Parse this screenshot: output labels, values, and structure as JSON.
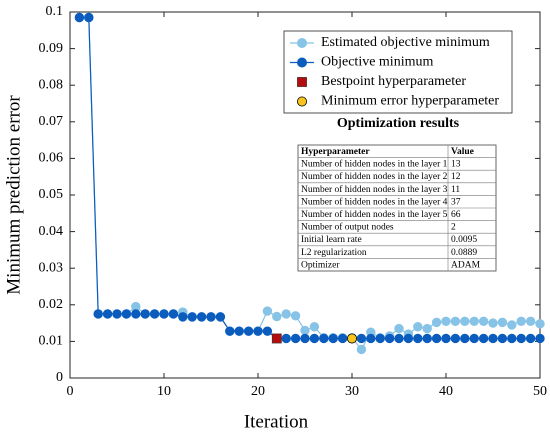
{
  "chart_data": {
    "type": "line",
    "xlabel": "Iteration",
    "ylabel": "Minimum prediction error",
    "xlim": [
      0,
      50
    ],
    "xticks": [
      0,
      10,
      20,
      30,
      40,
      50
    ],
    "ylim": [
      0,
      0.1
    ],
    "yticks": [
      0,
      0.01,
      0.02,
      0.03,
      0.04,
      0.05,
      0.06,
      0.07,
      0.08,
      0.09,
      0.1
    ],
    "grid": false,
    "legend": "upper right",
    "x": [
      1,
      2,
      3,
      4,
      5,
      6,
      7,
      8,
      9,
      10,
      11,
      12,
      13,
      14,
      15,
      16,
      17,
      18,
      19,
      20,
      21,
      22,
      23,
      24,
      25,
      26,
      27,
      28,
      29,
      30,
      31,
      32,
      33,
      34,
      35,
      36,
      37,
      38,
      39,
      40,
      41,
      42,
      43,
      44,
      45,
      46,
      47,
      48,
      49,
      50
    ],
    "series": [
      {
        "name": "Estimated objective minimum",
        "color": "#87c3e6",
        "marker": "o",
        "line": true,
        "values": [
          0.0985,
          0.0985,
          0.0175,
          0.0175,
          0.0175,
          0.0175,
          0.0195,
          0.0175,
          0.0175,
          0.0175,
          0.0175,
          0.018,
          0.0167,
          0.0167,
          0.0167,
          0.0167,
          0.0128,
          0.0128,
          0.0128,
          0.0128,
          0.0183,
          0.0168,
          0.0175,
          0.017,
          0.013,
          0.014,
          0.011,
          0.011,
          0.011,
          0.011,
          0.0078,
          0.0125,
          0.011,
          0.0115,
          0.0135,
          0.012,
          0.014,
          0.0135,
          0.0152,
          0.0155,
          0.0155,
          0.0155,
          0.0155,
          0.0155,
          0.015,
          0.0152,
          0.0145,
          0.0155,
          0.0155,
          0.0148
        ]
      },
      {
        "name": "Objective minimum",
        "color": "#0b5cbd",
        "marker": "o",
        "line": true,
        "values": [
          0.0985,
          0.0985,
          0.0175,
          0.0175,
          0.0175,
          0.0175,
          0.0175,
          0.0175,
          0.0175,
          0.0175,
          0.0175,
          0.0167,
          0.0167,
          0.0167,
          0.0167,
          0.0167,
          0.0128,
          0.0128,
          0.0128,
          0.0128,
          0.0128,
          0.0108,
          0.0108,
          0.0108,
          0.0108,
          0.0108,
          0.0108,
          0.0108,
          0.0108,
          0.0108,
          0.0108,
          0.0108,
          0.0108,
          0.0108,
          0.0108,
          0.0108,
          0.0108,
          0.0108,
          0.0108,
          0.0108,
          0.0108,
          0.0108,
          0.0108,
          0.0108,
          0.0108,
          0.0108,
          0.0108,
          0.0108,
          0.0108,
          0.0108
        ]
      },
      {
        "name": "Bestpoint hyperparameter",
        "color": "#b30d0d",
        "marker": "s",
        "line": false,
        "x": [
          22
        ],
        "values": [
          0.0108
        ]
      },
      {
        "name": "Minimum error hyperparameter",
        "color": "#f7c51e",
        "marker": "o",
        "line": false,
        "x": [
          30
        ],
        "values": [
          0.0108
        ]
      }
    ],
    "table": {
      "title": "Optimization results",
      "header": [
        "Hyperparameter",
        "Value"
      ],
      "rows": [
        [
          "Number of hidden nodes in the layer 1",
          "13"
        ],
        [
          "Number of hidden nodes in the layer 2",
          "12"
        ],
        [
          "Number of hidden nodes in the layer 3",
          "11"
        ],
        [
          "Number of hidden nodes in the layer 4",
          "37"
        ],
        [
          "Number of hidden nodes in the layer 5",
          "66"
        ],
        [
          "Number of output nodes",
          "2"
        ],
        [
          "Initial learn rate",
          "0.0095"
        ],
        [
          "L2 regularization",
          "0.0889"
        ],
        [
          "Optimizer",
          "ADAM"
        ]
      ]
    }
  }
}
